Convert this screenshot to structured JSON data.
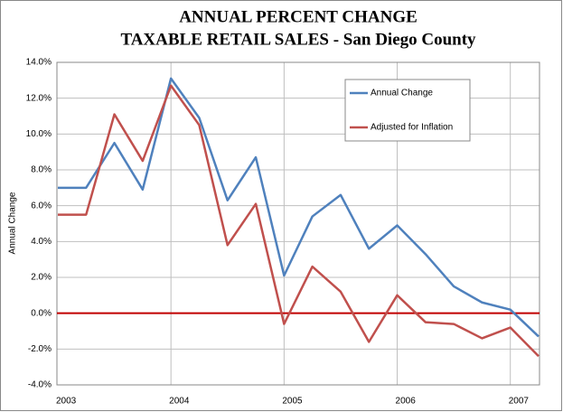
{
  "chart_data": {
    "type": "line",
    "title": [
      "ANNUAL PERCENT CHANGE",
      "TAXABLE RETAIL SALES - San Diego County"
    ],
    "y_label": "Annual Change",
    "categories": [
      "2003",
      null,
      null,
      null,
      "2004",
      null,
      null,
      null,
      "2005",
      null,
      null,
      null,
      "2006",
      null,
      null,
      null,
      "2007",
      null
    ],
    "series": [
      {
        "name": "Annual Change",
        "color": "#4f81bd",
        "values": [
          7.0,
          7.0,
          9.5,
          6.9,
          13.1,
          10.9,
          6.3,
          8.7,
          2.1,
          5.4,
          6.6,
          3.6,
          4.9,
          3.3,
          1.5,
          0.6,
          0.2,
          -1.3
        ]
      },
      {
        "name": "Adjusted for Inflation",
        "color": "#c0504d",
        "values": [
          5.5,
          5.5,
          11.1,
          8.5,
          12.7,
          10.5,
          3.8,
          6.1,
          -0.6,
          2.6,
          1.2,
          -1.6,
          1.0,
          -0.5,
          -0.6,
          -1.4,
          -0.8,
          -2.4
        ]
      }
    ],
    "ylim": [
      -4,
      14
    ],
    "yticks": [
      {
        "value": -4,
        "label": "-4.0%"
      },
      {
        "value": -2,
        "label": "-2.0%"
      },
      {
        "value": 0,
        "label": "0.0%"
      },
      {
        "value": 2,
        "label": "2.0%"
      },
      {
        "value": 4,
        "label": "4.0%"
      },
      {
        "value": 6,
        "label": "6.0%"
      },
      {
        "value": 8,
        "label": "8.0%"
      },
      {
        "value": 10,
        "label": "10.0%"
      },
      {
        "value": 12,
        "label": "12.0%"
      },
      {
        "value": 14,
        "label": "14.0%"
      }
    ],
    "reference_line": {
      "value": 0,
      "color": "#c00000"
    },
    "grid": true,
    "legend": "upper right"
  }
}
